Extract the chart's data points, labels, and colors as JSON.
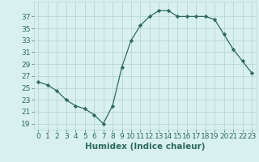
{
  "x": [
    0,
    1,
    2,
    3,
    4,
    5,
    6,
    7,
    8,
    9,
    10,
    11,
    12,
    13,
    14,
    15,
    16,
    17,
    18,
    19,
    20,
    21,
    22,
    23
  ],
  "y": [
    26,
    25.5,
    24.5,
    23,
    22,
    21.5,
    20.5,
    19,
    22,
    28.5,
    33,
    35.5,
    37,
    38,
    38,
    37,
    37,
    37,
    37,
    36.5,
    34,
    31.5,
    29.5,
    27.5
  ],
  "line_color": "#2e6b5e",
  "marker": "D",
  "marker_size": 2.2,
  "bg_color": "#d8f0ee",
  "grid_color": "#b8d8d4",
  "xlabel": "Humidex (Indice chaleur)",
  "xlabel_fontsize": 7.5,
  "yticks": [
    19,
    21,
    23,
    25,
    27,
    29,
    31,
    33,
    35,
    37
  ],
  "ylim": [
    18.0,
    39.5
  ],
  "xlim": [
    -0.5,
    23.5
  ],
  "tick_fontsize": 6.5,
  "linewidth": 0.9
}
